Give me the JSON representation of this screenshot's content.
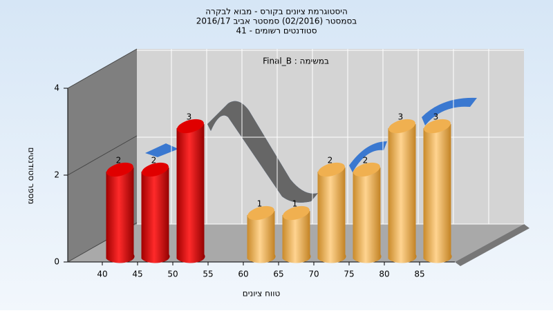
{
  "chart_data": {
    "type": "bar",
    "title": [
      "היסטוגרמת ציונים בקורס - מבוא לבקרה",
      "בסמסטר (02/2016) סמסטר אביב 2016/17",
      "סטודנטים רשומים - 41"
    ],
    "annotation": "במשימה : Final_B",
    "x_label": "טווח ציונים",
    "y_label": "מספר סטודנטים",
    "categories": [
      "40",
      "45",
      "50",
      "55",
      "60",
      "65",
      "70",
      "75",
      "80",
      "85"
    ],
    "values": [
      2,
      2,
      3,
      0,
      1,
      1,
      2,
      2,
      3,
      3
    ],
    "colors": [
      "red",
      "red",
      "red",
      "orange",
      "orange",
      "orange",
      "orange",
      "orange",
      "orange",
      "orange"
    ],
    "ylim": [
      0,
      4
    ],
    "yticks": [
      0,
      2,
      4
    ],
    "grid": true
  }
}
